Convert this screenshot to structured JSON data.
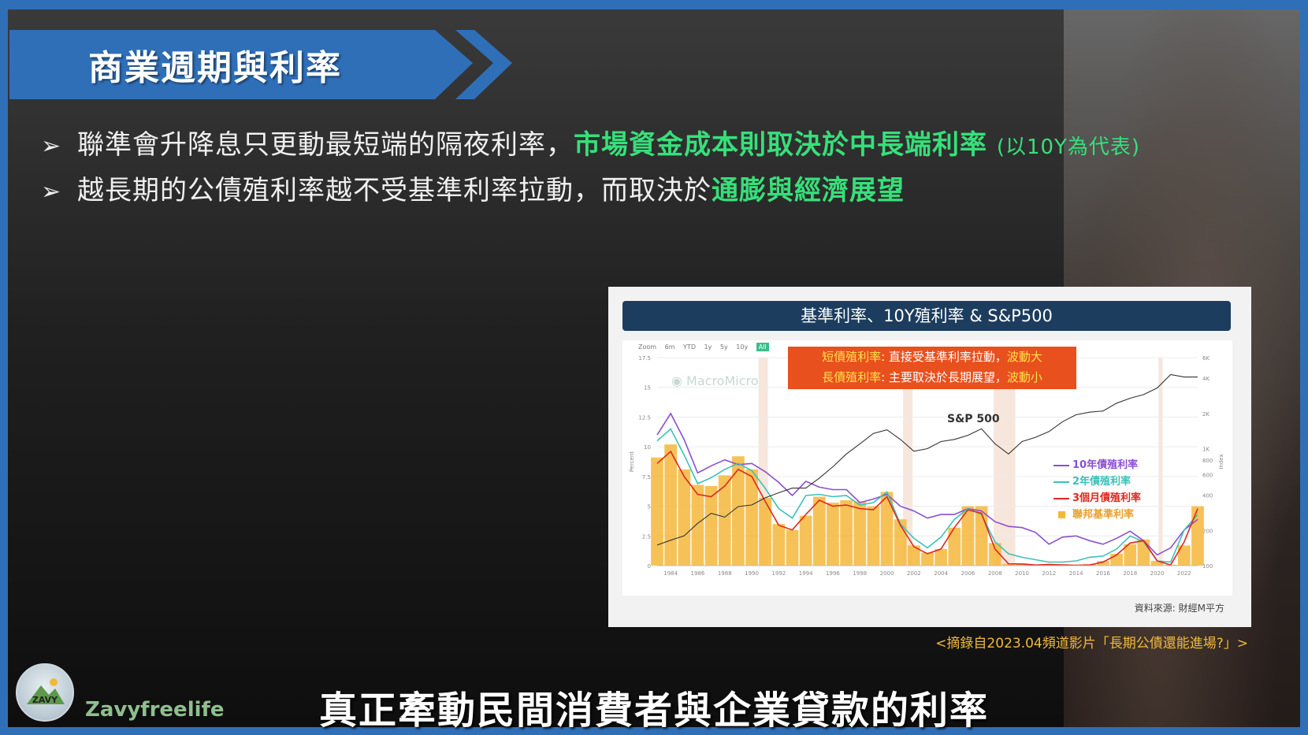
{
  "slide": {
    "title": "商業週期與利率",
    "bullets": [
      {
        "plain": "聯準會升降息只更動最短端的隔夜利率，",
        "highlight": "市場資金成本則取決於中長端利率",
        "note": "(以10Y為代表)"
      },
      {
        "plain": "越長期的公債殖利率越不受基準利率拉動，而取決於",
        "highlight": "通膨與經濟展望",
        "note": ""
      }
    ],
    "quote": "<摘錄自2023.04頻道影片「長期公債還能進場?」>",
    "brand": "Zavyfreelife",
    "logo_text": "ZAVY",
    "subtitle": "真正牽動民間消費者與企業貸款的利率"
  },
  "chart_data": {
    "type": "line",
    "title": "基準利率、10Y殖利率 & S&P500",
    "toolbar": [
      "Zoom",
      "6m",
      "YTD",
      "1y",
      "5y",
      "10y",
      "All"
    ],
    "watermark": "MacroMicro",
    "notes": [
      {
        "label": "短債殖利率",
        "text": ": 直接受基準利率拉動，",
        "tail": "波動大"
      },
      {
        "label": "長債殖利率",
        "text": ": 主要取決於長期展望，",
        "tail": "波動小"
      }
    ],
    "annotation": "S&P 500",
    "ylabel": "Percent",
    "ylabel_right": "Index",
    "ylim": [
      0,
      17.5
    ],
    "y_ticks": [
      "0",
      "2.5",
      "5",
      "7.5",
      "10",
      "12.5",
      "15",
      "17.5"
    ],
    "y_right_ticks": [
      "100",
      "200",
      "400",
      "600",
      "800",
      "1K",
      "2K",
      "4K",
      "6K"
    ],
    "x_ticks": [
      "1984",
      "1986",
      "1988",
      "1990",
      "1992",
      "1994",
      "1996",
      "1998",
      "2000",
      "2002",
      "2004",
      "2006",
      "2008",
      "2010",
      "2012",
      "2014",
      "2016",
      "2018",
      "2020",
      "2022"
    ],
    "x": [
      1983,
      1984,
      1985,
      1986,
      1987,
      1988,
      1989,
      1990,
      1991,
      1992,
      1993,
      1994,
      1995,
      1996,
      1997,
      1998,
      1999,
      2000,
      2001,
      2002,
      2003,
      2004,
      2005,
      2006,
      2007,
      2008,
      2009,
      2010,
      2011,
      2012,
      2013,
      2014,
      2015,
      2016,
      2017,
      2018,
      2019,
      2020,
      2021,
      2022,
      2023
    ],
    "series": [
      {
        "name": "10年債殖利率",
        "color": "#8a4fd0",
        "values": [
          11.0,
          12.8,
          10.6,
          7.8,
          8.4,
          8.9,
          8.5,
          8.6,
          7.9,
          7.0,
          5.9,
          7.1,
          6.6,
          6.4,
          6.4,
          5.3,
          5.6,
          6.0,
          5.0,
          4.6,
          4.0,
          4.3,
          4.3,
          4.8,
          4.6,
          3.7,
          3.3,
          3.2,
          2.8,
          1.8,
          2.4,
          2.5,
          2.1,
          1.8,
          2.3,
          2.9,
          2.1,
          0.9,
          1.5,
          3.0,
          3.9
        ]
      },
      {
        "name": "2年債殖利率",
        "color": "#3cc1b8",
        "values": [
          10.5,
          11.5,
          9.3,
          6.9,
          7.4,
          8.1,
          8.6,
          8.0,
          6.5,
          4.8,
          4.0,
          5.9,
          6.0,
          5.8,
          5.9,
          5.1,
          5.3,
          6.2,
          3.5,
          2.3,
          1.5,
          2.4,
          3.9,
          4.8,
          4.3,
          2.0,
          1.0,
          0.7,
          0.5,
          0.3,
          0.3,
          0.4,
          0.7,
          0.8,
          1.4,
          2.5,
          2.0,
          0.4,
          0.3,
          3.0,
          4.3
        ]
      },
      {
        "name": "3個月債殖利率",
        "color": "#e0281e",
        "values": [
          8.6,
          9.6,
          7.5,
          6.0,
          5.8,
          6.7,
          8.1,
          7.5,
          5.4,
          3.4,
          3.0,
          4.3,
          5.5,
          5.0,
          5.1,
          4.8,
          4.7,
          5.8,
          3.4,
          1.6,
          1.0,
          1.4,
          3.2,
          4.7,
          4.4,
          1.4,
          0.15,
          0.14,
          0.05,
          0.09,
          0.06,
          0.03,
          0.05,
          0.3,
          0.9,
          1.9,
          2.1,
          0.4,
          0.05,
          2.0,
          4.8
        ]
      },
      {
        "name": "聯邦基準利率",
        "color": "#f5b73b",
        "values": [
          9.1,
          10.2,
          8.1,
          6.8,
          6.7,
          7.6,
          9.2,
          8.1,
          5.7,
          3.5,
          3.0,
          4.2,
          5.8,
          5.3,
          5.5,
          5.4,
          5.0,
          6.2,
          3.9,
          1.7,
          1.1,
          1.4,
          3.2,
          5.0,
          5.0,
          1.9,
          0.16,
          0.18,
          0.1,
          0.14,
          0.11,
          0.09,
          0.13,
          0.4,
          1.0,
          1.8,
          2.2,
          0.4,
          0.08,
          1.7,
          5.0
        ]
      },
      {
        "name": "S&P 500",
        "color": "#333333",
        "values": [
          150,
          165,
          180,
          230,
          280,
          260,
          320,
          330,
          380,
          420,
          460,
          460,
          560,
          700,
          900,
          1100,
          1350,
          1450,
          1200,
          950,
          1000,
          1150,
          1200,
          1300,
          1480,
          1100,
          900,
          1150,
          1250,
          1400,
          1700,
          1950,
          2050,
          2100,
          2450,
          2700,
          2900,
          3300,
          4300,
          4100,
          4100
        ]
      }
    ],
    "source": "資料來源: 財經M平方"
  }
}
